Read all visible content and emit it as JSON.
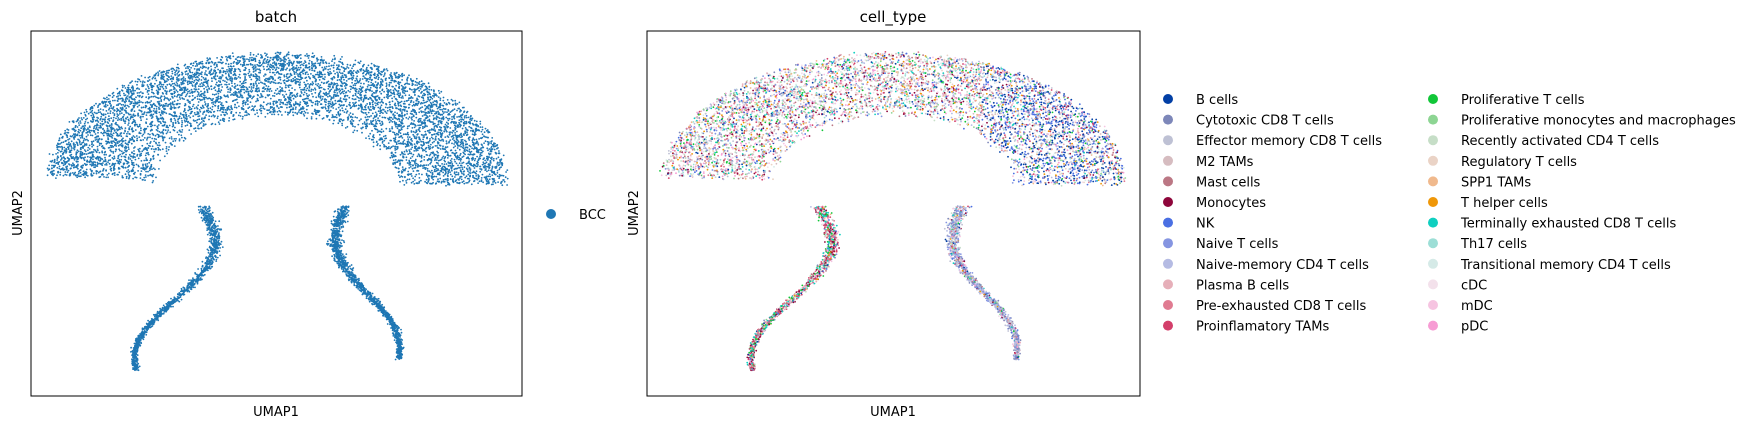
{
  "chart_data": [
    {
      "type": "scatter",
      "title": "batch",
      "xlabel": "UMAP1",
      "ylabel": "UMAP2",
      "xticks": false,
      "yticks": false,
      "legend_position": "right",
      "categories": [
        {
          "name": "BCC",
          "color": "#1f77b4"
        }
      ]
    },
    {
      "type": "scatter",
      "title": "cell_type",
      "xlabel": "UMAP1",
      "ylabel": "UMAP2",
      "xticks": false,
      "yticks": false,
      "legend_position": "right",
      "legend_columns": 2,
      "categories": [
        {
          "name": "B cells",
          "color": "#023fa5"
        },
        {
          "name": "Cytotoxic CD8 T cells",
          "color": "#7d87b9"
        },
        {
          "name": "Effector memory CD8 T cells",
          "color": "#bec1d4"
        },
        {
          "name": "M2 TAMs",
          "color": "#d6bcc0"
        },
        {
          "name": "Mast cells",
          "color": "#bb7784"
        },
        {
          "name": "Monocytes",
          "color": "#8e063b"
        },
        {
          "name": "NK",
          "color": "#4a6fe3"
        },
        {
          "name": "Naive T cells",
          "color": "#8595e1"
        },
        {
          "name": "Naive-memory CD4 T cells",
          "color": "#b5bbe3"
        },
        {
          "name": "Plasma B cells",
          "color": "#e6afb9"
        },
        {
          "name": "Pre-exhausted CD8 T cells",
          "color": "#e07b91"
        },
        {
          "name": "Proinflamatory TAMs",
          "color": "#d33f6a"
        },
        {
          "name": "Proliferative T cells",
          "color": "#11c638"
        },
        {
          "name": "Proliferative monocytes and macrophages",
          "color": "#8dd593"
        },
        {
          "name": "Recently activated CD4 T cells",
          "color": "#c6dec7"
        },
        {
          "name": "Regulatory T cells",
          "color": "#ead3c6"
        },
        {
          "name": "SPP1 TAMs",
          "color": "#f0b98d"
        },
        {
          "name": "T helper cells",
          "color": "#ef9708"
        },
        {
          "name": "Terminally exhausted CD8 T cells",
          "color": "#0fcfc0"
        },
        {
          "name": "Th17 cells",
          "color": "#9cded6"
        },
        {
          "name": "Transitional memory CD4 T cells",
          "color": "#d5eae7"
        },
        {
          "name": "cDC",
          "color": "#f3e1eb"
        },
        {
          "name": "mDC",
          "color": "#f6c4e1"
        },
        {
          "name": "pDC",
          "color": "#f79cd4"
        }
      ]
    }
  ]
}
